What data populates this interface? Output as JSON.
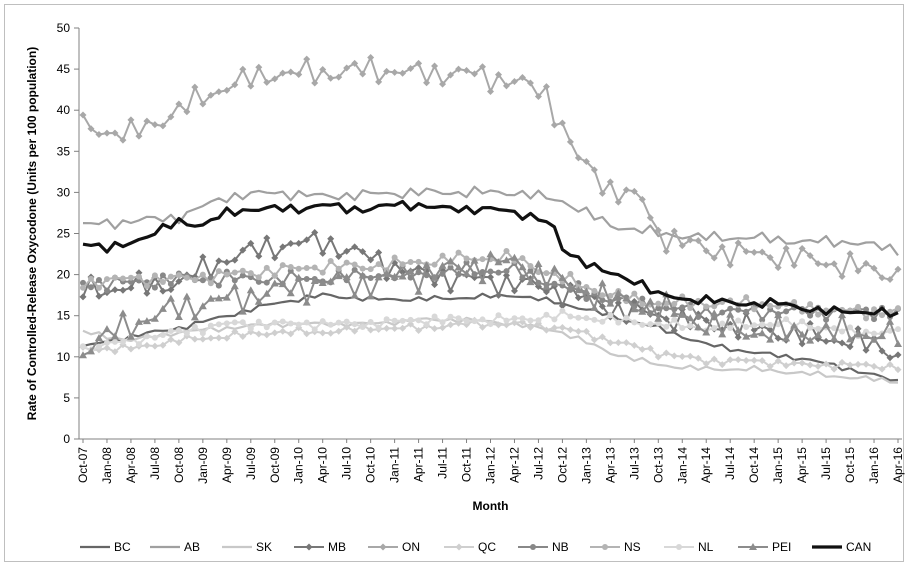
{
  "chart_data": {
    "type": "line",
    "xlabel": "Month",
    "ylabel": "Rate of Controlled-Release Oxycodone (Units per 100 population)",
    "ylim": [
      0,
      50
    ],
    "yticks": [
      0,
      5,
      10,
      15,
      20,
      25,
      30,
      35,
      40,
      45,
      50
    ],
    "x_tick_labels": [
      "Oct-07",
      "Jan-08",
      "Apr-08",
      "Jul-08",
      "Oct-08",
      "Jan-09",
      "Apr-09",
      "Jul-09",
      "Oct-09",
      "Jan-10",
      "Apr-10",
      "Jul-10",
      "Oct-10",
      "Jan-11",
      "Apr-11",
      "Jul-11",
      "Oct-11",
      "Jan-12",
      "Apr-12",
      "Jul-12",
      "Oct-12",
      "Jan-13",
      "Apr-13",
      "Jul-13",
      "Oct-13",
      "Jan-14",
      "Apr-14",
      "Jul-14",
      "Oct-14",
      "Jan-15",
      "Apr-15",
      "Jul-15",
      "Oct-15",
      "Jan-16",
      "Apr-16"
    ],
    "months_count": 103,
    "legend_position": "bottom",
    "series": [
      {
        "name": "BC",
        "color": "#666666",
        "marker": "none",
        "width": 2.2,
        "anchors": [
          [
            0,
            11.2
          ],
          [
            6,
            12.5
          ],
          [
            12,
            13.5
          ],
          [
            18,
            15
          ],
          [
            24,
            16.5
          ],
          [
            30,
            17.5
          ],
          [
            36,
            17
          ],
          [
            42,
            17
          ],
          [
            48,
            17.2
          ],
          [
            54,
            17.5
          ],
          [
            60,
            16.5
          ],
          [
            66,
            15
          ],
          [
            72,
            13.5
          ],
          [
            78,
            11.5
          ],
          [
            84,
            10.5
          ],
          [
            90,
            9.8
          ],
          [
            96,
            8.5
          ],
          [
            102,
            7
          ]
        ]
      },
      {
        "name": "AB",
        "color": "#a0a0a0",
        "marker": "none",
        "width": 2.2,
        "anchors": [
          [
            0,
            26
          ],
          [
            6,
            26.5
          ],
          [
            12,
            27
          ],
          [
            18,
            29.5
          ],
          [
            24,
            30
          ],
          [
            30,
            29.5
          ],
          [
            36,
            29.8
          ],
          [
            42,
            30
          ],
          [
            48,
            30
          ],
          [
            54,
            30
          ],
          [
            60,
            29
          ],
          [
            66,
            26
          ],
          [
            72,
            25
          ],
          [
            78,
            24.5
          ],
          [
            84,
            24.5
          ],
          [
            90,
            24
          ],
          [
            96,
            24
          ],
          [
            102,
            23
          ]
        ]
      },
      {
        "name": "SK",
        "color": "#c8c8c8",
        "marker": "none",
        "width": 2.2,
        "anchors": [
          [
            0,
            13
          ],
          [
            6,
            12
          ],
          [
            12,
            13
          ],
          [
            18,
            13.5
          ],
          [
            24,
            14
          ],
          [
            30,
            14
          ],
          [
            36,
            14
          ],
          [
            42,
            14.5
          ],
          [
            48,
            14.5
          ],
          [
            54,
            14
          ],
          [
            60,
            13
          ],
          [
            66,
            10.5
          ],
          [
            72,
            9
          ],
          [
            78,
            8.5
          ],
          [
            84,
            8.5
          ],
          [
            90,
            8
          ],
          [
            96,
            7.5
          ],
          [
            102,
            7
          ]
        ]
      },
      {
        "name": "MB",
        "color": "#777777",
        "marker": "diamond",
        "width": 2.0,
        "anchors": [
          [
            0,
            18
          ],
          [
            6,
            18.5
          ],
          [
            12,
            19
          ],
          [
            18,
            22
          ],
          [
            24,
            23.5
          ],
          [
            30,
            24
          ],
          [
            36,
            22
          ],
          [
            42,
            20
          ],
          [
            48,
            19.5
          ],
          [
            54,
            19
          ],
          [
            60,
            18
          ],
          [
            66,
            16
          ],
          [
            72,
            15
          ],
          [
            78,
            14
          ],
          [
            84,
            13.5
          ],
          [
            90,
            12.5
          ],
          [
            96,
            12
          ],
          [
            102,
            10.5
          ]
        ]
      },
      {
        "name": "ON",
        "color": "#a8a8a8",
        "marker": "diamond",
        "width": 2.0,
        "anchors": [
          [
            0,
            38
          ],
          [
            6,
            37
          ],
          [
            12,
            40
          ],
          [
            18,
            43
          ],
          [
            24,
            44.5
          ],
          [
            30,
            44.5
          ],
          [
            36,
            45
          ],
          [
            42,
            44.5
          ],
          [
            48,
            44.5
          ],
          [
            54,
            43.5
          ],
          [
            58,
            42
          ],
          [
            60,
            38
          ],
          [
            62,
            34
          ],
          [
            66,
            30.5
          ],
          [
            70,
            29
          ],
          [
            72,
            25
          ],
          [
            78,
            23
          ],
          [
            84,
            22.5
          ],
          [
            90,
            22
          ],
          [
            96,
            21
          ],
          [
            102,
            20
          ]
        ]
      },
      {
        "name": "QC",
        "color": "#cfcfcf",
        "marker": "diamond",
        "width": 2.0,
        "anchors": [
          [
            0,
            11
          ],
          [
            6,
            11
          ],
          [
            12,
            12
          ],
          [
            18,
            12.5
          ],
          [
            24,
            13
          ],
          [
            30,
            13
          ],
          [
            36,
            13.5
          ],
          [
            42,
            13.5
          ],
          [
            48,
            14
          ],
          [
            54,
            14
          ],
          [
            60,
            13.5
          ],
          [
            66,
            12
          ],
          [
            72,
            10.5
          ],
          [
            78,
            9.5
          ],
          [
            84,
            9.5
          ],
          [
            90,
            9
          ],
          [
            96,
            9
          ],
          [
            102,
            8.8
          ]
        ]
      },
      {
        "name": "NB",
        "color": "#888888",
        "marker": "circle",
        "width": 2.0,
        "anchors": [
          [
            0,
            19
          ],
          [
            6,
            19
          ],
          [
            12,
            19.5
          ],
          [
            18,
            19.5
          ],
          [
            24,
            19.5
          ],
          [
            30,
            19.5
          ],
          [
            36,
            20
          ],
          [
            42,
            20
          ],
          [
            48,
            20.5
          ],
          [
            54,
            20.5
          ],
          [
            60,
            18.5
          ],
          [
            66,
            17
          ],
          [
            72,
            16
          ],
          [
            78,
            15.5
          ],
          [
            84,
            15.5
          ],
          [
            90,
            15.5
          ],
          [
            96,
            15.5
          ],
          [
            102,
            15.5
          ]
        ]
      },
      {
        "name": "NS",
        "color": "#b4b4b4",
        "marker": "circle",
        "width": 2.0,
        "anchors": [
          [
            0,
            19
          ],
          [
            6,
            19.5
          ],
          [
            12,
            19.5
          ],
          [
            18,
            20
          ],
          [
            24,
            20.5
          ],
          [
            30,
            21
          ],
          [
            36,
            21
          ],
          [
            42,
            21.5
          ],
          [
            48,
            22
          ],
          [
            54,
            22
          ],
          [
            60,
            19.5
          ],
          [
            66,
            17.5
          ],
          [
            72,
            16.5
          ],
          [
            78,
            16.5
          ],
          [
            84,
            16.5
          ],
          [
            90,
            16
          ],
          [
            96,
            15.5
          ],
          [
            102,
            15.5
          ]
        ]
      },
      {
        "name": "NL",
        "color": "#d8d8d8",
        "marker": "circle",
        "width": 2.0,
        "anchors": [
          [
            0,
            11
          ],
          [
            6,
            12
          ],
          [
            12,
            13
          ],
          [
            18,
            14
          ],
          [
            24,
            14
          ],
          [
            30,
            14
          ],
          [
            36,
            14
          ],
          [
            42,
            14.5
          ],
          [
            48,
            14.5
          ],
          [
            54,
            14.5
          ],
          [
            60,
            15
          ],
          [
            66,
            14.5
          ],
          [
            72,
            14
          ],
          [
            78,
            13.5
          ],
          [
            84,
            14
          ],
          [
            90,
            14
          ],
          [
            96,
            13
          ],
          [
            102,
            13
          ]
        ]
      },
      {
        "name": "PEI",
        "color": "#8c8c8c",
        "marker": "triangle",
        "width": 2.0,
        "anchors": [
          [
            0,
            11
          ],
          [
            6,
            14
          ],
          [
            12,
            16
          ],
          [
            18,
            17
          ],
          [
            24,
            18
          ],
          [
            30,
            19
          ],
          [
            36,
            19
          ],
          [
            42,
            20
          ],
          [
            48,
            21
          ],
          [
            54,
            21.5
          ],
          [
            60,
            19
          ],
          [
            66,
            17
          ],
          [
            72,
            16
          ],
          [
            78,
            14
          ],
          [
            84,
            13
          ],
          [
            90,
            13
          ],
          [
            96,
            13
          ],
          [
            102,
            12.5
          ]
        ]
      },
      {
        "name": "CAN",
        "color": "#111111",
        "marker": "none",
        "width": 3.2,
        "anchors": [
          [
            0,
            24
          ],
          [
            3,
            23
          ],
          [
            6,
            24
          ],
          [
            9,
            25
          ],
          [
            12,
            26.5
          ],
          [
            15,
            26
          ],
          [
            18,
            27.5
          ],
          [
            21,
            28
          ],
          [
            24,
            28
          ],
          [
            27,
            28
          ],
          [
            30,
            28.5
          ],
          [
            33,
            28
          ],
          [
            36,
            28
          ],
          [
            39,
            28.5
          ],
          [
            42,
            28.5
          ],
          [
            45,
            28
          ],
          [
            48,
            28
          ],
          [
            51,
            28
          ],
          [
            54,
            27.5
          ],
          [
            57,
            27
          ],
          [
            59,
            25.5
          ],
          [
            60,
            23
          ],
          [
            62,
            22
          ],
          [
            64,
            21
          ],
          [
            66,
            20
          ],
          [
            68,
            19.5
          ],
          [
            70,
            19
          ],
          [
            72,
            17.5
          ],
          [
            75,
            17
          ],
          [
            78,
            17
          ],
          [
            81,
            16.5
          ],
          [
            84,
            16.5
          ],
          [
            87,
            16.5
          ],
          [
            90,
            16
          ],
          [
            93,
            15.5
          ],
          [
            96,
            15.5
          ],
          [
            99,
            15.5
          ],
          [
            102,
            15
          ]
        ]
      }
    ]
  }
}
